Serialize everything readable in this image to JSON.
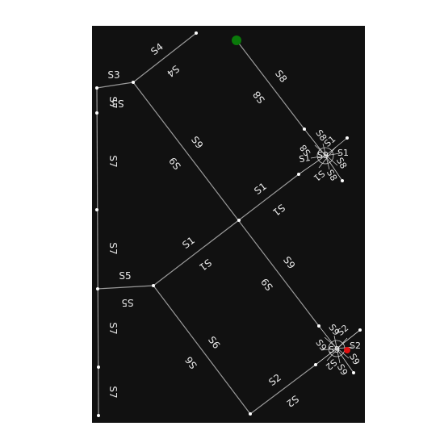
{
  "colors": {
    "background": "#ffffff",
    "map": "#111111",
    "road": "#9a9a9a",
    "label": "#e8e8e8",
    "node": "#ffffff",
    "start_marker": "#0a7a0a",
    "goal_marker": "#e01010"
  },
  "labels": {
    "s1": "S1",
    "s2": "S2",
    "s3": "S3",
    "s4": "S4",
    "s5": "S5",
    "s6": "S6",
    "s7": "S7",
    "s8": "S8",
    "s9": "S9"
  }
}
